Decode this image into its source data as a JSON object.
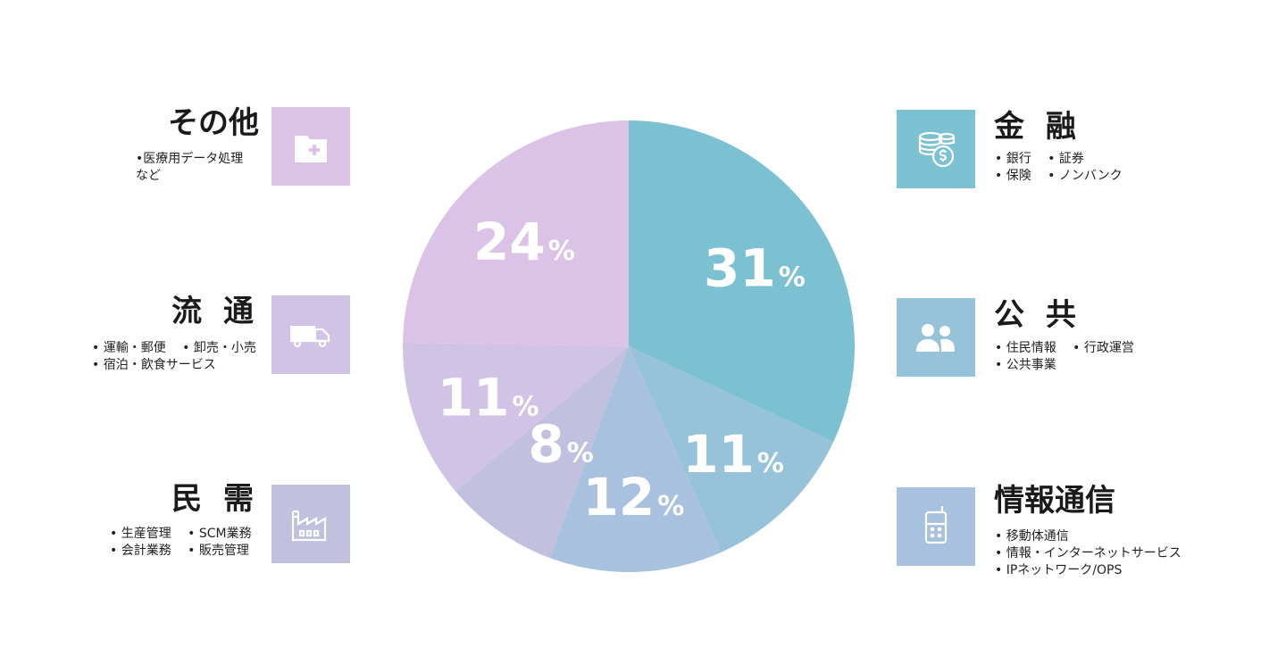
{
  "colors": {
    "finance": "#7cc1d1",
    "public": "#96c3da",
    "telecom": "#a8c1de",
    "private": "#c1c0df",
    "distribution": "#d1c3e5",
    "other": "#dbc3e8"
  },
  "chart_data": {
    "type": "pie",
    "start_angle_deg": 0,
    "direction": "clockwise",
    "slices": [
      {
        "id": "finance",
        "value": 31
      },
      {
        "id": "public",
        "value": 11
      },
      {
        "id": "telecom",
        "value": 12
      },
      {
        "id": "private",
        "value": 8
      },
      {
        "id": "distribution",
        "value": 11
      },
      {
        "id": "other",
        "value": 24
      }
    ],
    "unit": "%"
  },
  "categories": {
    "finance": {
      "title": "金 融",
      "icon": "coins-icon",
      "lines": [
        "• 銀行 　• 証券",
        "• 保険 　• ノンバンク"
      ]
    },
    "public": {
      "title": "公 共",
      "icon": "people-icon",
      "lines": [
        "• 住民情報 　• 行政運営",
        "• 公共事業"
      ]
    },
    "telecom": {
      "title": "情報通信",
      "icon": "mobile-phone-icon",
      "lines": [
        "• 移動体通信",
        "• 情報・インターネットサービス",
        "• IPネットワーク/OPS"
      ]
    },
    "private": {
      "title": "民 需",
      "icon": "factory-icon",
      "lines": [
        "• 生産管理 　• SCM業務",
        "• 会計業務 　• 販売管理"
      ]
    },
    "distribution": {
      "title": "流 通",
      "icon": "truck-icon",
      "lines": [
        "• 運輸・郵便 　• 卸売・小売",
        "• 宿泊・飲食サービス"
      ]
    },
    "other": {
      "title": "その他",
      "icon": "medical-case-icon",
      "lines": [
        "•医療用データ処理",
        "など"
      ]
    }
  }
}
